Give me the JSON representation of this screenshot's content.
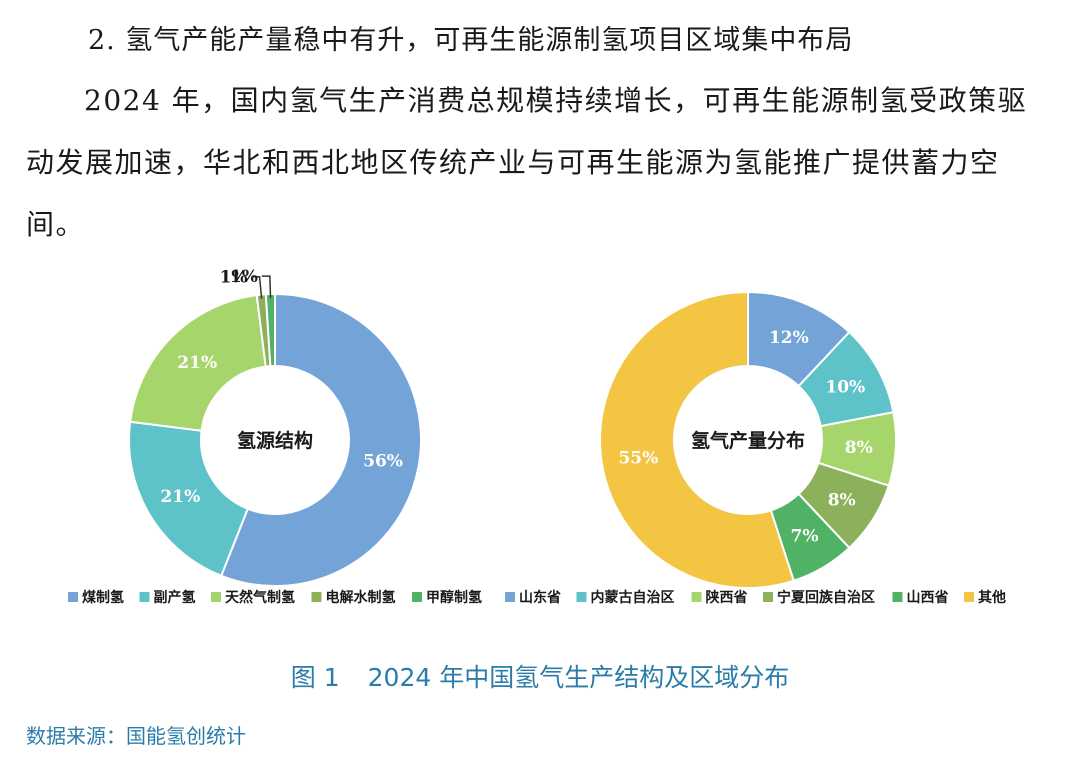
{
  "text": {
    "heading": "2. 氢气产能产量稳中有升，可再生能源制氢项目区域集中布局",
    "paragraph": "2024 年，国内氢气生产消费总规模持续增长，可再生能源制氢受政策驱动发展加速，华北和西北地区传统产业与可再生能源为氢能推广提供蓄力空间。",
    "caption_num": "图 1",
    "caption_title": "2024 年中国氢气生产结构及区域分布",
    "source": "数据来源：国能氢创统计"
  },
  "chart_data": [
    {
      "type": "pie",
      "title": "氢源结构",
      "categories": [
        "煤制氢",
        "副产氢",
        "天然气制氢",
        "电解水制氢",
        "甲醇制氢"
      ],
      "values": [
        56,
        21,
        21,
        1,
        1
      ],
      "labels": [
        "56%",
        "21%",
        "21%",
        "1%",
        "1%"
      ],
      "colors": [
        "#74a3d7",
        "#5ec3c9",
        "#a6d56b",
        "#8db05a",
        "#4fb265"
      ],
      "legend": "bottom"
    },
    {
      "type": "pie",
      "title": "氢气产量分布",
      "categories": [
        "山东省",
        "内蒙古自治区",
        "陕西省",
        "宁夏回族自治区",
        "山西省",
        "其他"
      ],
      "values": [
        12,
        10,
        8,
        8,
        7,
        55
      ],
      "labels": [
        "12%",
        "10%",
        "8%",
        "8%",
        "7%",
        "55%"
      ],
      "colors": [
        "#74a3d7",
        "#5ec3c9",
        "#a6d56b",
        "#8db05a",
        "#4fb265",
        "#f4c443"
      ],
      "legend": "bottom"
    }
  ]
}
